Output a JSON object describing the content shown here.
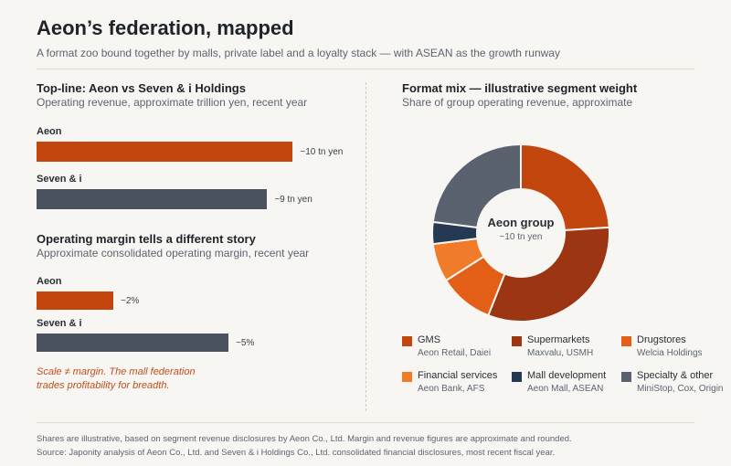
{
  "header": {
    "title": "Aeon’s federation, mapped",
    "subtitle": "A format zoo bound together by malls, private label and a loyalty stack — with ASEAN as the growth runway"
  },
  "colors": {
    "aeon_bar": "#c4460f",
    "seven_bar": "#4a5260",
    "note": "#c24d1c"
  },
  "left": {
    "revenue": {
      "title": "Top-line: Aeon vs Seven & i Holdings",
      "subtitle": "Operating revenue, approximate trillion yen, recent year"
    },
    "margin": {
      "title": "Operating margin tells a different story",
      "subtitle": "Approximate consolidated operating margin, recent year"
    },
    "note_line1": "Scale ≠ margin. The mall federation",
    "note_line2": "trades profitability for breadth."
  },
  "right": {
    "title": "Format mix — illustrative segment weight",
    "subtitle": "Share of group operating revenue, approximate",
    "center_title": "Aeon group",
    "center_sub": "~10 tn yen"
  },
  "chart_data": [
    {
      "type": "bar",
      "orientation": "horizontal",
      "title": "Top-line: Aeon vs Seven & i Holdings",
      "subtitle": "Operating revenue, approximate trillion yen, recent year",
      "categories": [
        "Aeon",
        "Seven & i"
      ],
      "values": [
        10,
        9
      ],
      "value_labels": [
        "~10 tn yen",
        "~9 tn yen"
      ],
      "colors": [
        "#c4460f",
        "#4a5260"
      ],
      "xlim": [
        0,
        10.7
      ]
    },
    {
      "type": "bar",
      "orientation": "horizontal",
      "title": "Operating margin tells a different story",
      "subtitle": "Approximate consolidated operating margin, recent year",
      "categories": [
        "Aeon",
        "Seven & i"
      ],
      "values": [
        2,
        5
      ],
      "value_labels": [
        "~2%",
        "~5%"
      ],
      "colors": [
        "#c4460f",
        "#4a5260"
      ],
      "xlim": [
        0,
        7.14
      ]
    },
    {
      "type": "pie",
      "donut": true,
      "title": "Format mix — illustrative segment weight",
      "subtitle": "Share of group operating revenue, approximate",
      "slices": [
        {
          "label": "GMS",
          "value": 24,
          "color": "#c4460f",
          "desc": "Aeon Retail, Daiei"
        },
        {
          "label": "Supermarkets",
          "value": 32,
          "color": "#9b3512",
          "desc": "Maxvalu, USMH"
        },
        {
          "label": "Drugstores",
          "value": 10,
          "color": "#e35e17",
          "desc": "Welcia Holdings"
        },
        {
          "label": "Financial services",
          "value": 7,
          "color": "#f07b28",
          "desc": "Aeon Bank, AFS"
        },
        {
          "label": "Mall development",
          "value": 4,
          "color": "#253a52",
          "desc": "Aeon Mall, ASEAN"
        },
        {
          "label": "Specialty & other",
          "value": 23,
          "color": "#5a6270",
          "desc": "MiniStop, Cox, Origin"
        }
      ]
    }
  ],
  "footer": {
    "line1": "Shares are illustrative, based on segment revenue disclosures by Aeon Co., Ltd. Margin and revenue figures are approximate and rounded.",
    "line2": "Source: Japonity analysis of Aeon Co., Ltd. and Seven & i Holdings Co., Ltd. consolidated financial disclosures, most recent fiscal year."
  }
}
